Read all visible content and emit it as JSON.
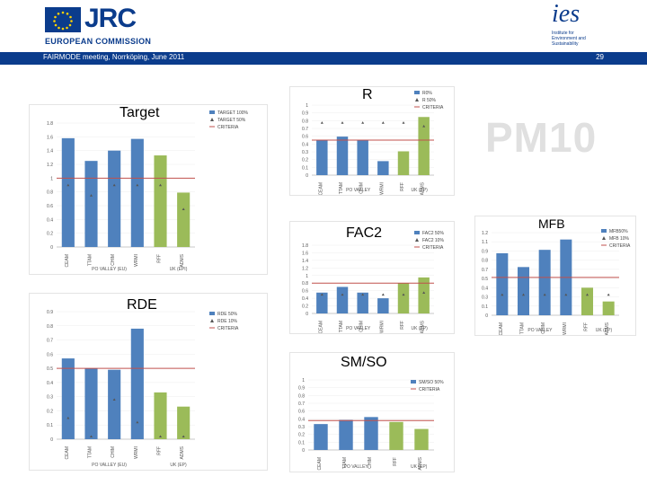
{
  "header": {
    "jrc": "JRC",
    "ec": "EUROPEAN COMMISSION",
    "ies_mark": "ies",
    "ies_lines": [
      "Institute for",
      "Environment and",
      "Sustainability"
    ]
  },
  "topbar": {
    "left": "FAIRMODE meeting, Norrköping, June 2011",
    "right": "29"
  },
  "watermark": "PM10",
  "colors": {
    "blue": "#4f81bd",
    "green": "#9bbb59",
    "red": "#c0504d",
    "navy": "#0b3c8c"
  },
  "chart_data": [
    {
      "id": "target",
      "type": "bar",
      "title": "Target",
      "categories": [
        "CEAM",
        "TTAM",
        "CHIM",
        "WRMI",
        "RFF",
        "ADMS"
      ],
      "series": [
        {
          "name": "TARGET 100%",
          "values": [
            1.58,
            1.25,
            1.4,
            1.57,
            1.33,
            0.79
          ]
        },
        {
          "name": "TARGET 50%",
          "values": [
            0.9,
            0.75,
            0.9,
            0.9,
            0.9,
            0.55
          ]
        }
      ],
      "criteria": 1.0,
      "ylim": [
        0,
        1.8
      ],
      "xlabel_left": "PO VALLEY (EU)",
      "xlabel_right": "UK (EPI)"
    },
    {
      "id": "r",
      "type": "bar",
      "title": "R",
      "categories": [
        "CEAM",
        "TTAM",
        "CHIM",
        "WRMI",
        "RFF",
        "ADMS"
      ],
      "series": [
        {
          "name": "R0%",
          "values": [
            0.5,
            0.55,
            0.5,
            0.2,
            0.34,
            0.83
          ]
        },
        {
          "name": "R 50%",
          "values": [
            0.75,
            0.75,
            0.75,
            0.75,
            0.75,
            0.7
          ]
        }
      ],
      "criteria": 0.5,
      "ylim": [
        0,
        1
      ],
      "xlabel_left": "PO VALLEY",
      "xlabel_right": "UK (EP)"
    },
    {
      "id": "fac2",
      "type": "bar",
      "title": "FAC2",
      "categories": [
        "CEAM",
        "TTAM",
        "CHIM",
        "WRMI",
        "RFF",
        "ADMS"
      ],
      "series": [
        {
          "name": "FAC2 50%",
          "values": [
            0.55,
            0.7,
            0.55,
            0.4,
            0.8,
            0.95
          ]
        },
        {
          "name": "FAC2 10%",
          "values": [
            0.5,
            0.5,
            0.5,
            0.5,
            0.5,
            0.55
          ]
        }
      ],
      "criteria": 0.8,
      "ylim": [
        0,
        1.8
      ],
      "xlabel_left": "PO VALLEY",
      "xlabel_right": "UK (EP)"
    },
    {
      "id": "mfb",
      "type": "bar",
      "title": "MFB",
      "categories": [
        "CEAM",
        "TTAM",
        "CHIM",
        "WRMI",
        "RFF",
        "ADMS"
      ],
      "series": [
        {
          "name": "MFB50%",
          "values": [
            0.9,
            0.7,
            0.95,
            1.1,
            0.4,
            0.2
          ]
        },
        {
          "name": "MFB 10%",
          "values": [
            0.3,
            0.3,
            0.3,
            0.3,
            0.3,
            0.3
          ]
        }
      ],
      "criteria": 0.55,
      "ylim": [
        0,
        1.2
      ],
      "xlabel_left": "PO VALLEY",
      "xlabel_right": "UK (EP)"
    },
    {
      "id": "rde",
      "type": "bar",
      "title": "RDE",
      "categories": [
        "CEAM",
        "TTAM",
        "CHIM",
        "WRMI",
        "RFF",
        "ADMS"
      ],
      "series": [
        {
          "name": "RDE 50%",
          "values": [
            0.57,
            0.5,
            0.49,
            0.78,
            0.33,
            0.23
          ]
        },
        {
          "name": "RDE 10%",
          "values": [
            0.15,
            0.02,
            0.28,
            0.12,
            0.02,
            0.02
          ]
        }
      ],
      "criteria": 0.5,
      "ylim": [
        0,
        0.9
      ],
      "xlabel_left": "PO VALLEY (EU)",
      "xlabel_right": "UK (EP)"
    },
    {
      "id": "smso",
      "type": "bar",
      "title": "SM/SO",
      "categories": [
        "CEAM",
        "TTAM",
        "CHIM",
        "RFF",
        "ADMS"
      ],
      "series": [
        {
          "name": "SM/SO 50%",
          "values": [
            0.37,
            0.43,
            0.47,
            0.4,
            0.3
          ]
        }
      ],
      "criteria": 0.42,
      "ylim": [
        0,
        1
      ],
      "xlabel_left": "PO VALLEY",
      "xlabel_right": "UK (EP)"
    }
  ]
}
